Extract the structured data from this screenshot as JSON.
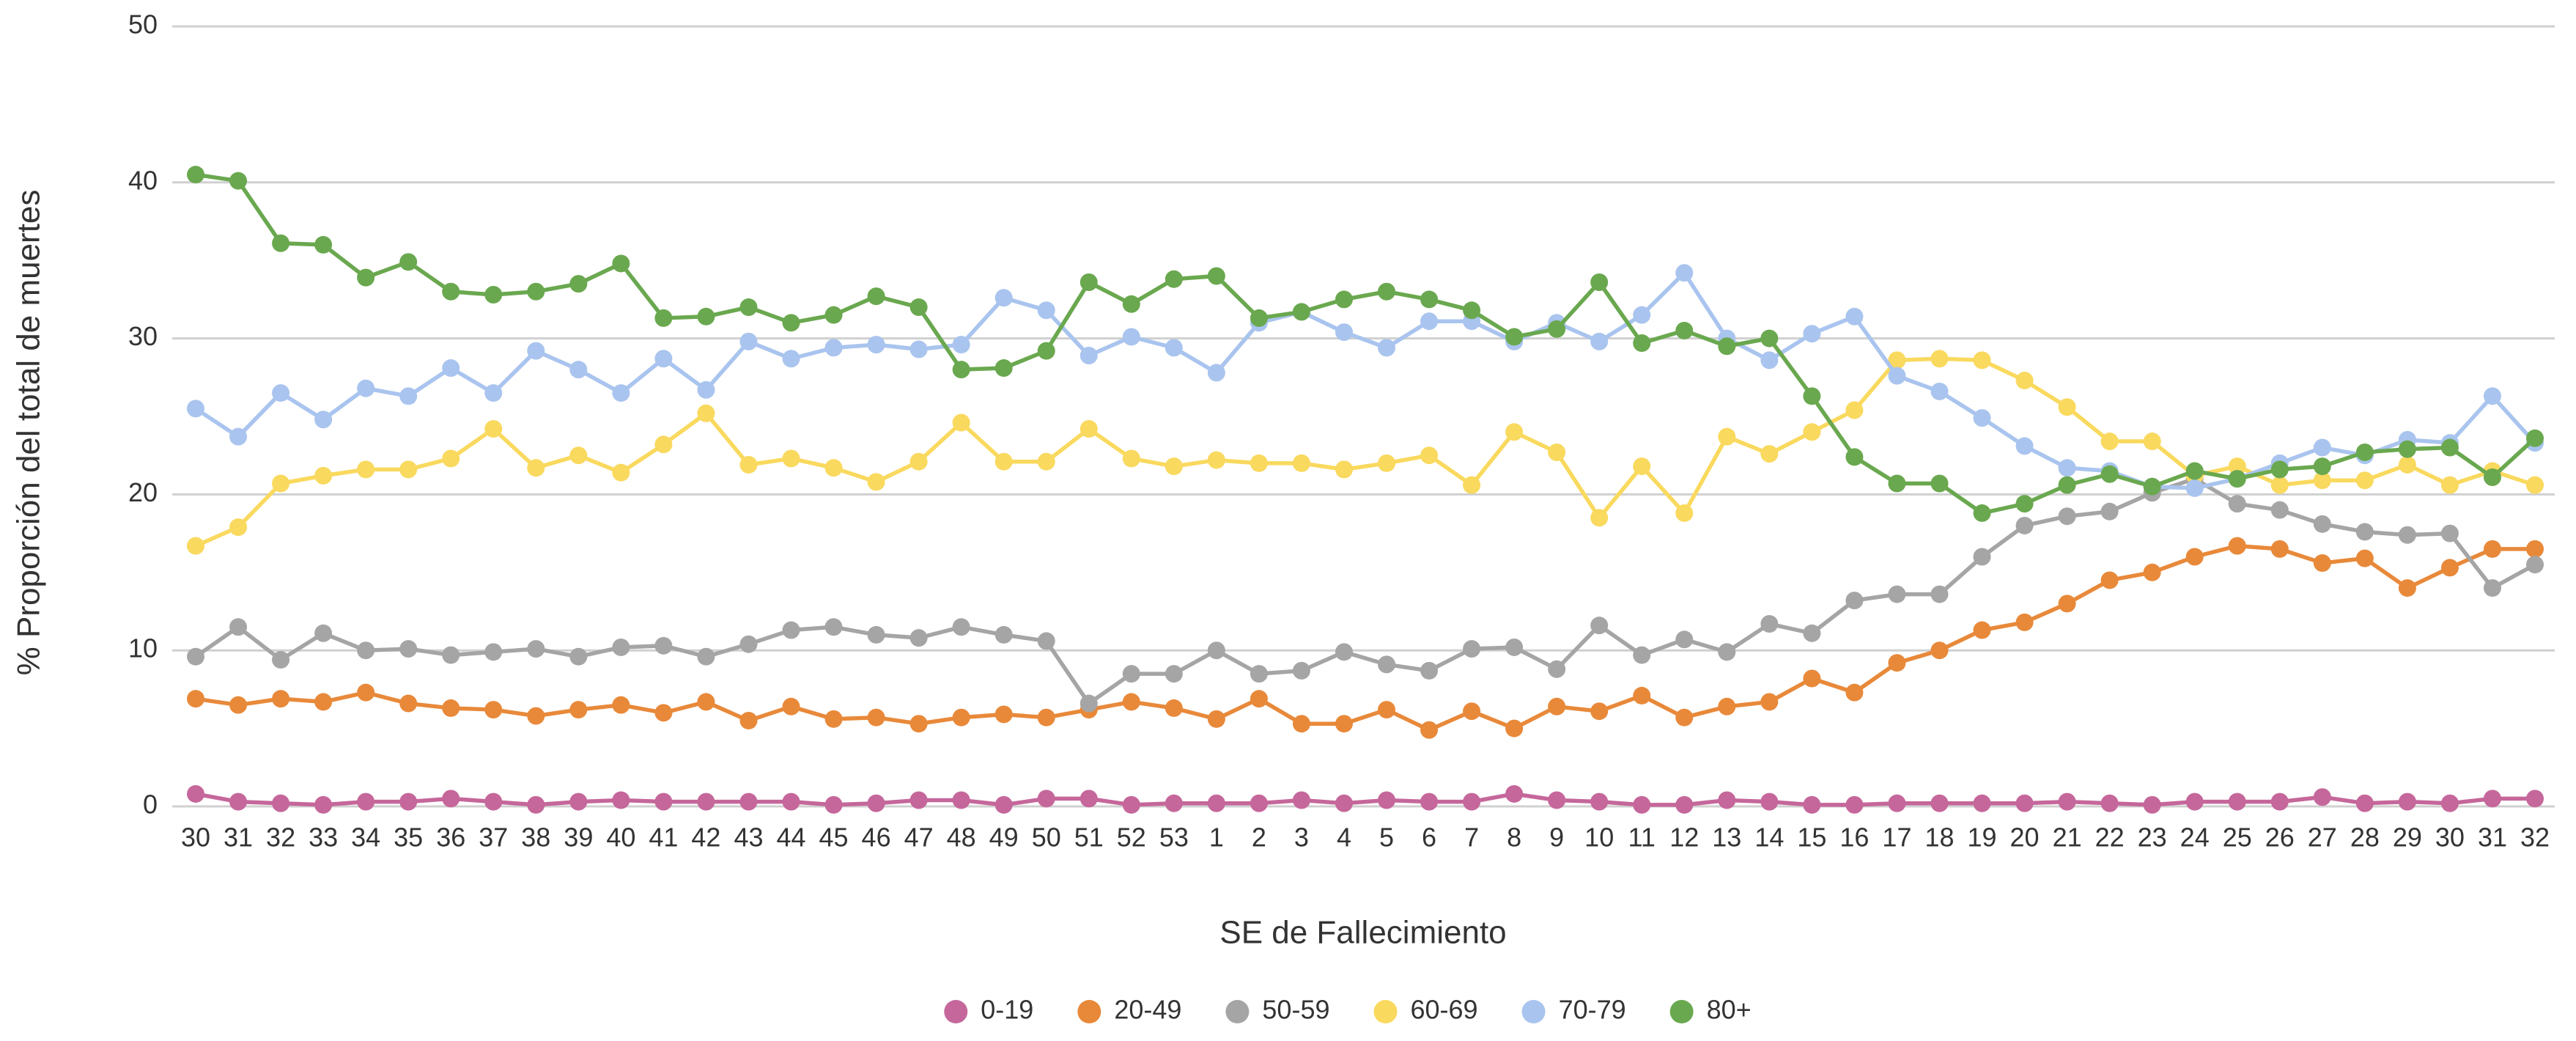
{
  "chart_data": {
    "type": "line",
    "x_label": "SE de Fallecimiento",
    "y_label": "% Proporción del total de muertes",
    "categories": [
      30,
      31,
      32,
      33,
      34,
      35,
      36,
      37,
      38,
      39,
      40,
      41,
      42,
      43,
      44,
      45,
      46,
      47,
      48,
      49,
      50,
      51,
      52,
      53,
      1,
      2,
      3,
      4,
      5,
      6,
      7,
      8,
      9,
      10,
      11,
      12,
      13,
      14,
      15,
      16,
      17,
      18,
      19,
      20,
      21,
      22,
      23,
      24,
      25,
      26,
      27,
      28,
      29,
      30,
      31,
      32
    ],
    "ylim": [
      0,
      50
    ],
    "yticks": [
      0,
      10,
      20,
      30,
      40,
      50
    ],
    "grid": true,
    "legend": "bottom",
    "series": [
      {
        "name": "0-19",
        "color": "#c5679b",
        "values": [
          0.8,
          0.3,
          0.2,
          0.1,
          0.3,
          0.3,
          0.5,
          0.3,
          0.1,
          0.3,
          0.4,
          0.3,
          0.3,
          0.3,
          0.3,
          0.1,
          0.2,
          0.4,
          0.4,
          0.1,
          0.5,
          0.5,
          0.1,
          0.2,
          0.2,
          0.2,
          0.4,
          0.2,
          0.4,
          0.3,
          0.3,
          0.8,
          0.4,
          0.3,
          0.1,
          0.1,
          0.4,
          0.3,
          0.1,
          0.1,
          0.2,
          0.2,
          0.2,
          0.2,
          0.3,
          0.2,
          0.1,
          0.3,
          0.3,
          0.3,
          0.6,
          0.2,
          0.3,
          0.2,
          0.5,
          0.5
        ]
      },
      {
        "name": "20-49",
        "color": "#e8893a",
        "values": [
          6.9,
          6.5,
          6.9,
          6.7,
          7.3,
          6.6,
          6.3,
          6.2,
          5.8,
          6.2,
          6.5,
          6.0,
          6.7,
          5.5,
          6.4,
          5.6,
          5.7,
          5.3,
          5.7,
          5.9,
          5.7,
          6.2,
          6.7,
          6.3,
          5.6,
          6.9,
          5.3,
          5.3,
          6.2,
          4.9,
          6.1,
          5.0,
          6.4,
          6.1,
          7.1,
          5.7,
          6.4,
          6.7,
          8.2,
          7.3,
          9.2,
          10.0,
          11.3,
          11.8,
          13.0,
          14.5,
          15.0,
          16.0,
          16.7,
          16.5,
          15.6,
          15.9,
          14.0,
          15.3,
          16.5,
          16.5
        ]
      },
      {
        "name": "50-59",
        "color": "#a5a5a5",
        "values": [
          9.6,
          11.5,
          9.4,
          11.1,
          10.0,
          10.1,
          9.7,
          9.9,
          10.1,
          9.6,
          10.2,
          10.3,
          9.6,
          10.4,
          11.3,
          11.5,
          11.0,
          10.8,
          11.5,
          11.0,
          10.6,
          6.6,
          8.5,
          8.5,
          10.0,
          8.5,
          8.7,
          9.9,
          9.1,
          8.7,
          10.1,
          10.2,
          8.8,
          11.6,
          9.7,
          10.7,
          9.9,
          11.7,
          11.1,
          13.2,
          13.6,
          13.6,
          16.0,
          18.0,
          18.6,
          18.9,
          20.1,
          21.0,
          19.4,
          19.0,
          18.1,
          17.6,
          17.4,
          17.5,
          14.0,
          15.5
        ]
      },
      {
        "name": "60-69",
        "color": "#f9d95e",
        "values": [
          16.7,
          17.9,
          20.7,
          21.2,
          21.6,
          21.6,
          22.3,
          24.2,
          21.7,
          22.5,
          21.4,
          23.2,
          25.2,
          21.9,
          22.3,
          21.7,
          20.8,
          22.1,
          24.6,
          22.1,
          22.1,
          24.2,
          22.3,
          21.8,
          22.2,
          22.0,
          22.0,
          21.6,
          22.0,
          22.5,
          20.6,
          24.0,
          22.7,
          18.5,
          21.8,
          18.8,
          23.7,
          22.6,
          24.0,
          25.4,
          28.6,
          28.7,
          28.6,
          27.3,
          25.6,
          23.4,
          23.4,
          21.2,
          21.8,
          20.6,
          20.9,
          20.9,
          21.9,
          20.6,
          21.5,
          20.6
        ]
      },
      {
        "name": "70-79",
        "color": "#a9c4ee",
        "values": [
          25.5,
          23.7,
          26.5,
          24.8,
          26.8,
          26.3,
          28.1,
          26.5,
          29.2,
          28.0,
          26.5,
          28.7,
          26.7,
          29.8,
          28.7,
          29.4,
          29.6,
          29.3,
          29.6,
          32.6,
          31.8,
          28.9,
          30.1,
          29.4,
          27.8,
          31.0,
          31.7,
          30.4,
          29.4,
          31.1,
          31.1,
          29.8,
          31.0,
          29.8,
          31.5,
          34.2,
          30.0,
          28.6,
          30.3,
          31.4,
          27.6,
          26.6,
          24.9,
          23.1,
          21.7,
          21.5,
          20.5,
          20.4,
          21.0,
          22.0,
          23.0,
          22.5,
          23.5,
          23.3,
          26.3,
          23.3
        ]
      },
      {
        "name": "80+",
        "color": "#6aa84f",
        "values": [
          40.5,
          40.1,
          36.1,
          36.0,
          33.9,
          34.9,
          33.0,
          32.8,
          33.0,
          33.5,
          34.8,
          31.3,
          31.4,
          32.0,
          31.0,
          31.5,
          32.7,
          32.0,
          28.0,
          28.1,
          29.2,
          33.6,
          32.2,
          33.8,
          34.0,
          31.3,
          31.7,
          32.5,
          33.0,
          32.5,
          31.8,
          30.1,
          30.6,
          33.6,
          29.7,
          30.5,
          29.5,
          30.0,
          26.3,
          22.4,
          20.7,
          20.7,
          18.8,
          19.4,
          20.6,
          21.3,
          20.5,
          21.5,
          21.0,
          21.6,
          21.8,
          22.7,
          22.9,
          23.0,
          21.1,
          23.6
        ]
      }
    ]
  }
}
